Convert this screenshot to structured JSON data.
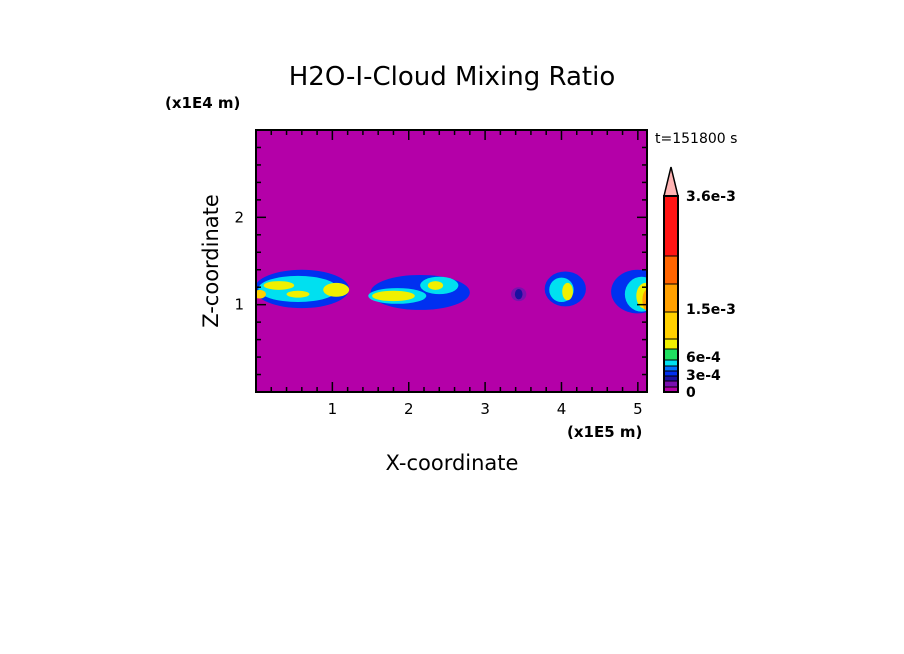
{
  "chart_data": {
    "type": "heatmap",
    "subtype": "filled-contour",
    "title": "H2O-I-Cloud Mixing Ratio",
    "xlabel": "X-coordinate",
    "ylabel": "Z-coordinate",
    "x_unit_label": "(x1E5 m)",
    "y_unit_label": "(x1E4 m)",
    "time_label": "t=151800 s",
    "xlim": [
      0,
      5.12
    ],
    "ylim": [
      0,
      3.0
    ],
    "x_ticks": [
      "1",
      "2",
      "3",
      "4",
      "5"
    ],
    "y_ticks": [
      "1",
      "2"
    ],
    "background_color": "#b400a8",
    "colorbar": {
      "colors": [
        "#b400a8",
        "#7a10b0",
        "#1a10a0",
        "#0030f0",
        "#0070ff",
        "#00e0f0",
        "#20e060",
        "#f0f000",
        "#ffd000",
        "#ffa000",
        "#ff6400",
        "#ff1414",
        "#ff8080",
        "#ffb4b4"
      ],
      "labels": [
        "0",
        "3e-4",
        "6e-4",
        "1.5e-3",
        "3.6e-3"
      ],
      "extend": "max"
    },
    "cloud_features": [
      {
        "x": 0.6,
        "z": 1.18,
        "rx": 0.62,
        "rz": 0.22,
        "level": 3
      },
      {
        "x": 0.55,
        "z": 1.18,
        "rx": 0.52,
        "rz": 0.15,
        "level": 5
      },
      {
        "x": 1.05,
        "z": 1.17,
        "rx": 0.17,
        "rz": 0.08,
        "level": 7
      },
      {
        "x": 0.3,
        "z": 1.22,
        "rx": 0.2,
        "rz": 0.05,
        "level": 7
      },
      {
        "x": 0.55,
        "z": 1.12,
        "rx": 0.15,
        "rz": 0.04,
        "level": 7
      },
      {
        "x": 0.05,
        "z": 1.12,
        "rx": 0.08,
        "rz": 0.05,
        "level": 8
      },
      {
        "x": 2.15,
        "z": 1.14,
        "rx": 0.65,
        "rz": 0.2,
        "level": 3
      },
      {
        "x": 1.85,
        "z": 1.1,
        "rx": 0.38,
        "rz": 0.09,
        "level": 5
      },
      {
        "x": 1.8,
        "z": 1.1,
        "rx": 0.28,
        "rz": 0.06,
        "level": 7
      },
      {
        "x": 2.4,
        "z": 1.22,
        "rx": 0.25,
        "rz": 0.1,
        "level": 5
      },
      {
        "x": 2.35,
        "z": 1.22,
        "rx": 0.1,
        "rz": 0.05,
        "level": 7
      },
      {
        "x": 3.44,
        "z": 1.12,
        "rx": 0.1,
        "rz": 0.08,
        "level": 1
      },
      {
        "x": 3.44,
        "z": 1.12,
        "rx": 0.05,
        "rz": 0.06,
        "level": 2
      },
      {
        "x": 4.05,
        "z": 1.18,
        "rx": 0.27,
        "rz": 0.2,
        "level": 3
      },
      {
        "x": 4.0,
        "z": 1.17,
        "rx": 0.16,
        "rz": 0.14,
        "level": 5
      },
      {
        "x": 4.08,
        "z": 1.15,
        "rx": 0.07,
        "rz": 0.1,
        "level": 7
      },
      {
        "x": 5.0,
        "z": 1.15,
        "rx": 0.35,
        "rz": 0.25,
        "level": 3
      },
      {
        "x": 5.05,
        "z": 1.12,
        "rx": 0.22,
        "rz": 0.2,
        "level": 5
      },
      {
        "x": 5.1,
        "z": 1.1,
        "rx": 0.12,
        "rz": 0.15,
        "level": 7
      },
      {
        "x": 5.12,
        "z": 1.05,
        "rx": 0.06,
        "rz": 0.12,
        "level": 9
      }
    ]
  }
}
